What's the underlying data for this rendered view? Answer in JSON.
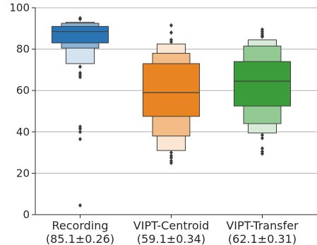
{
  "chart_data": {
    "type": "boxen",
    "title": "",
    "xlabel": "",
    "ylabel": "",
    "ylim": [
      0,
      100
    ],
    "yticks": [
      0,
      20,
      40,
      60,
      80,
      100
    ],
    "grid": "horizontal",
    "legend": "none",
    "categories": [
      {
        "name": "Recording",
        "score": "(85.1±0.26)",
        "color": "#2a74b4",
        "median": 88.5,
        "levels": [
          {
            "low": 83,
            "high": 91
          },
          {
            "low": 80.5,
            "high": 92.5
          },
          {
            "low": 73,
            "high": 93
          }
        ],
        "outliers": [
          95,
          94.5,
          71.5,
          68.5,
          67.5,
          66.5,
          42.5,
          41.5,
          40,
          36.5,
          4.5
        ]
      },
      {
        "name": "VIPT-Centroid",
        "score": "(59.1±0.34)",
        "color": "#e98422",
        "median": 59,
        "levels": [
          {
            "low": 47.5,
            "high": 73
          },
          {
            "low": 38,
            "high": 78
          },
          {
            "low": 31,
            "high": 82.5
          }
        ],
        "outliers": [
          91.5,
          88,
          84.5,
          83.5,
          30,
          28.5,
          27.5,
          26,
          25
        ]
      },
      {
        "name": "VIPT-Transfer",
        "score": "(62.1±0.31)",
        "color": "#3b9c3a",
        "median": 64.5,
        "levels": [
          {
            "low": 52.5,
            "high": 74
          },
          {
            "low": 44,
            "high": 81.5
          },
          {
            "low": 39.5,
            "high": 84.5
          }
        ],
        "outliers": [
          89.5,
          88.5,
          87.5,
          86.5,
          86,
          38.5,
          37,
          32,
          30.5,
          29.5
        ]
      }
    ]
  }
}
